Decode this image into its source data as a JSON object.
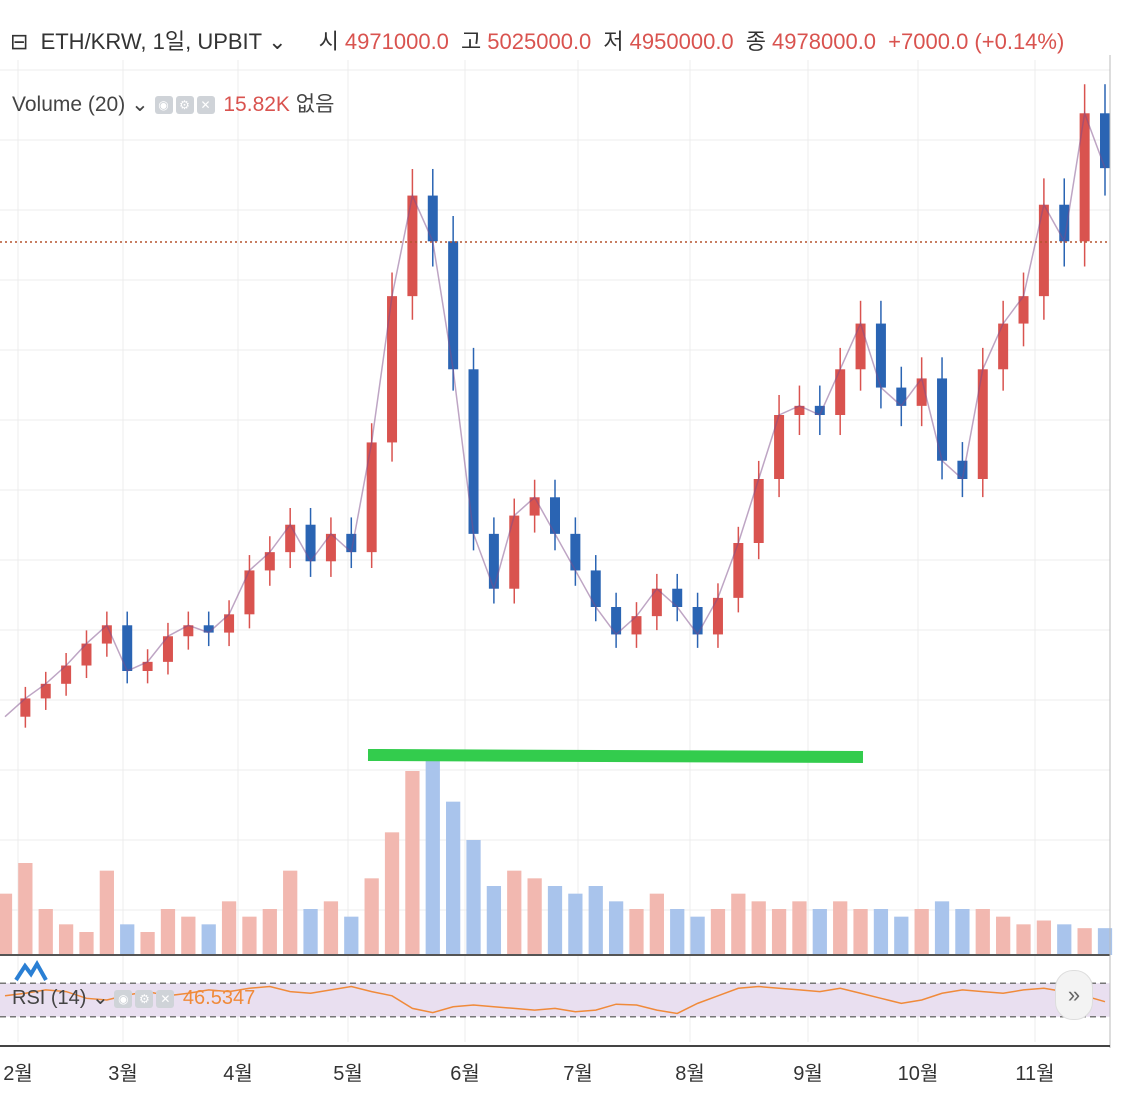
{
  "header": {
    "symbol_text": "ETH/KRW, 1일, UPBIT",
    "open_label": "시",
    "open_value": "4971000.0",
    "high_label": "고",
    "high_value": "5025000.0",
    "low_label": "저",
    "low_value": "4950000.0",
    "close_label": "종",
    "close_value": "4978000.0",
    "change": "+7000.0 (+0.14%)"
  },
  "volume_legend": {
    "label": "Volume (20)",
    "value": "15.82K",
    "extra": "없음"
  },
  "rsi_legend": {
    "label": "RSI (14)",
    "value": "46.5347"
  },
  "colors": {
    "up": "#d9534f",
    "down": "#2a64b3",
    "support_line": "#33cc4d",
    "rsi_line": "#f08a3a",
    "rsi_band": "#e9dff0"
  },
  "chart_data": {
    "type": "line",
    "x_tick_labels": [
      "2월",
      "3월",
      "4월",
      "5월",
      "6월",
      "7월",
      "8월",
      "9월",
      "10월",
      "11월"
    ],
    "series": [
      {
        "values": [
          2000000,
          2100000,
          2180000,
          2280000,
          2400000,
          2500000,
          2250000,
          2300000,
          2440000,
          2500000,
          2460000,
          2560000,
          2800000,
          2900000,
          3050000,
          2850000,
          3000000,
          2900000,
          3500000,
          4300000,
          4850000,
          4600000,
          3900000,
          3000000,
          2700000,
          3100000,
          3200000,
          3000000,
          2800000,
          2600000,
          2450000,
          2550000,
          2700000,
          2600000,
          2450000,
          2650000,
          2950000,
          3300000,
          3650000,
          3700000,
          3650000,
          3900000,
          4150000,
          3800000,
          3700000,
          3850000,
          3400000,
          3300000,
          3900000,
          4150000,
          4300000,
          4800000,
          4600000,
          5300000,
          5000000
        ]
      }
    ],
    "volume_values": [
      80,
      120,
      60,
      40,
      30,
      110,
      40,
      30,
      60,
      50,
      40,
      70,
      50,
      60,
      110,
      60,
      70,
      50,
      100,
      160,
      240,
      260,
      200,
      150,
      90,
      110,
      100,
      90,
      80,
      90,
      70,
      60,
      80,
      60,
      50,
      60,
      80,
      70,
      60,
      70,
      60,
      70,
      60,
      60,
      50,
      60,
      70,
      60,
      60,
      50,
      40,
      45,
      40,
      35,
      35
    ],
    "rsi_values": [
      55,
      58,
      62,
      60,
      52,
      50,
      56,
      60,
      55,
      58,
      62,
      60,
      64,
      66,
      60,
      58,
      62,
      66,
      60,
      55,
      40,
      35,
      42,
      44,
      42,
      40,
      38,
      40,
      36,
      38,
      45,
      44,
      38,
      34,
      46,
      55,
      64,
      66,
      64,
      62,
      60,
      64,
      58,
      52,
      46,
      50,
      58,
      62,
      60,
      58,
      62,
      64,
      60,
      55,
      48
    ],
    "rsi_levels": [
      70,
      30
    ],
    "grid": true
  }
}
